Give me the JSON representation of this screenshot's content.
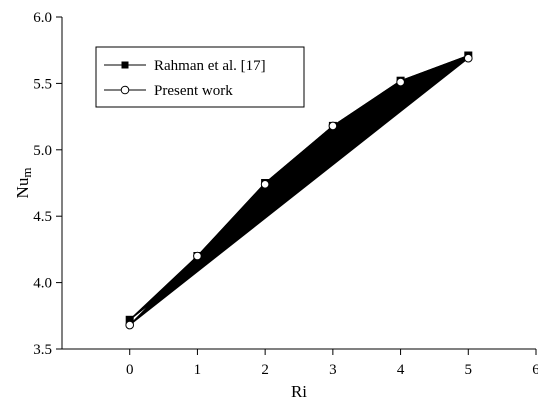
{
  "chart_data": {
    "type": "line",
    "title": "",
    "xlabel": "Ri",
    "ylabel": {
      "main": "Nu",
      "sub": "m"
    },
    "xlim": [
      -1,
      6
    ],
    "ylim": [
      3.5,
      6.0
    ],
    "xticks": [
      0,
      1,
      2,
      3,
      4,
      5,
      6
    ],
    "yticks": [
      3.5,
      4.0,
      4.5,
      5.0,
      5.5,
      6.0
    ],
    "grid": false,
    "legend_position": "top-left",
    "series": [
      {
        "name": "Rahman et al. [17]",
        "marker": "filled-square",
        "color": "#000000",
        "x": [
          0,
          1,
          2,
          3,
          4,
          5
        ],
        "y": [
          3.72,
          4.2,
          4.75,
          5.18,
          5.52,
          5.71
        ]
      },
      {
        "name": "Present work",
        "marker": "open-circle",
        "color": "#000000",
        "x": [
          0,
          1,
          2,
          3,
          4,
          5
        ],
        "y": [
          3.68,
          4.2,
          4.74,
          5.18,
          5.51,
          5.69
        ]
      }
    ],
    "fill_between_endpoints": true
  }
}
